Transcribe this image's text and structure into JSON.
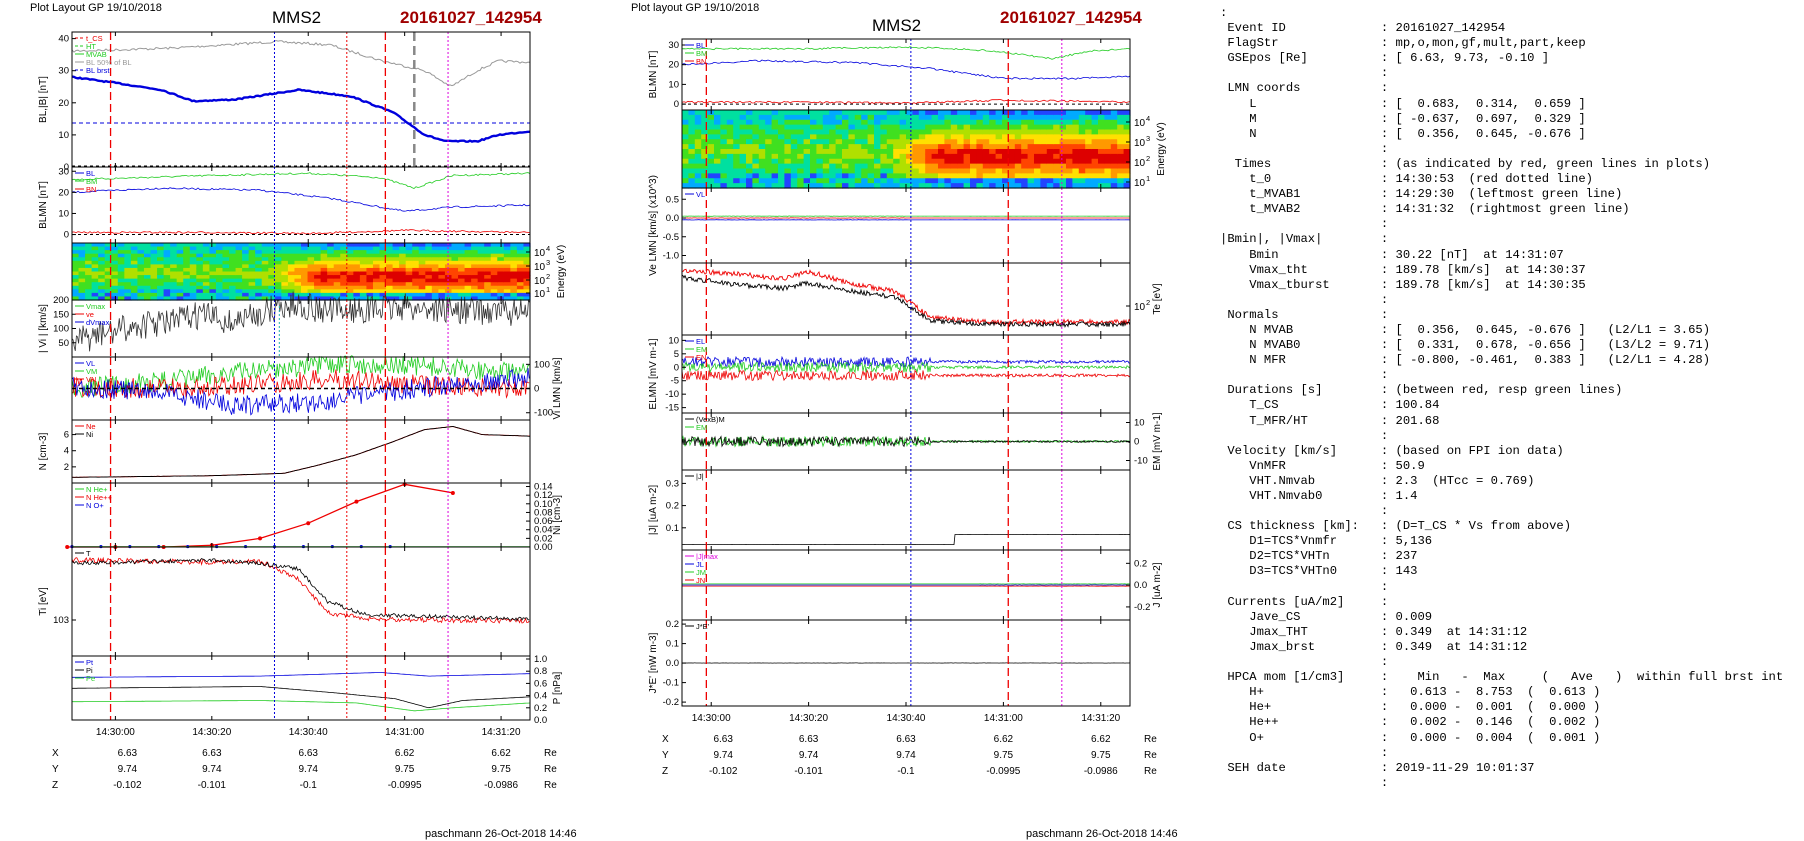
{
  "header": {
    "left_title": "Plot Layout GP 19/10/2018",
    "right_title": "Plot layout GP 19/10/2018",
    "spacecraft": "MMS2",
    "event": "20161027_142954"
  },
  "footer": {
    "left": "paschmann 26-Oct-2018 14:46",
    "right": "paschmann 26-Oct-2018 14:46"
  },
  "colors": {
    "red": "#ee0000",
    "green": "#22cc22",
    "blue": "#0000dd",
    "magenta": "#dd00dd",
    "black": "#000000",
    "grey": "#999999",
    "event": "#a00000"
  },
  "chart_data": [
    {
      "type": "line",
      "group": "left",
      "x_ticks": [
        "14:30:00",
        "14:30:20",
        "14:30:40",
        "14:31:00",
        "14:31:20"
      ],
      "position_table": {
        "rows": [
          {
            "label": "X",
            "values": [
              "6.63",
              "6.63",
              "6.63",
              "6.62",
              "6.62"
            ],
            "unit": "Re"
          },
          {
            "label": "Y",
            "values": [
              "9.74",
              "9.74",
              "9.74",
              "9.75",
              "9.75"
            ],
            "unit": "Re"
          },
          {
            "label": "Z",
            "values": [
              "-0.102",
              "-0.101",
              "-0.1",
              "-0.0995",
              "-0.0986"
            ],
            "unit": "Re"
          }
        ]
      },
      "panels": [
        {
          "id": "b",
          "ylabel": "BL,|B| [nT]",
          "y_ticks_left": [
            "0",
            "10",
            "20",
            "30",
            "40"
          ],
          "legend": [
            "t_CS",
            "HT",
            "MVAB",
            "BL 50% of BL",
            "BL brst"
          ]
        },
        {
          "id": "blmn",
          "ylabel": "BLMN [nT]",
          "y_ticks_left": [
            "0",
            "10",
            "20",
            "30"
          ],
          "legend": [
            "BL",
            "BM",
            "BN"
          ]
        },
        {
          "id": "spec",
          "ylabel_right": "Energy (eV)",
          "y_ticks_right": [
            "10^4",
            "10^3",
            "10^2",
            "10^1"
          ]
        },
        {
          "id": "vi",
          "ylabel": "| Vi | [km/s]",
          "y_ticks_left": [
            "50",
            "100",
            "150",
            "200"
          ],
          "legend": [
            "Vmax",
            "ve",
            "dVmax"
          ]
        },
        {
          "id": "vilmn",
          "ylabel_right": "Vi LMN [km/s]",
          "y_ticks_right": [
            "100",
            "0",
            "-100"
          ],
          "legend": [
            "VL",
            "VM",
            "VN"
          ]
        },
        {
          "id": "n",
          "ylabel": "N [cm-3]",
          "y_ticks_left": [
            "2",
            "4",
            "6"
          ],
          "legend": [
            "Ne",
            "Ni"
          ]
        },
        {
          "id": "nion",
          "ylabel_right": "Ni [cm-3]",
          "y_ticks_right": [
            "0.14",
            "0.12",
            "0.10",
            "0.08",
            "0.06",
            "0.04",
            "0.02",
            "0.00"
          ],
          "legend": [
            "N He+",
            "N He++",
            "N O+"
          ],
          "he_pp": [
            [
              -10,
              0.0
            ],
            [
              0,
              0.0
            ],
            [
              10,
              0.0
            ],
            [
              20,
              0.004
            ],
            [
              30,
              0.02
            ],
            [
              40,
              0.055
            ],
            [
              50,
              0.105
            ],
            [
              60,
              0.145
            ],
            [
              70,
              0.125
            ]
          ]
        },
        {
          "id": "ti",
          "ylabel": "Ti [eV]",
          "y_ticks_left": [
            "10^3"
          ],
          "legend": [
            "T"
          ]
        },
        {
          "id": "p",
          "ylabel_right": "P [nPa]",
          "y_ticks_right": [
            "1.0",
            "0.8",
            "0.6",
            "0.4",
            "0.2",
            "0.0"
          ],
          "legend": [
            "Pt",
            "Pi",
            "Pe"
          ]
        }
      ]
    },
    {
      "type": "line",
      "group": "right",
      "x_ticks": [
        "14:30:00",
        "14:30:20",
        "14:30:40",
        "14:31:00",
        "14:31:20"
      ],
      "position_table": {
        "rows": [
          {
            "label": "X",
            "values": [
              "6.63",
              "6.63",
              "6.63",
              "6.62",
              "6.62"
            ],
            "unit": "Re"
          },
          {
            "label": "Y",
            "values": [
              "9.74",
              "9.74",
              "9.74",
              "9.75",
              "9.75"
            ],
            "unit": "Re"
          },
          {
            "label": "Z",
            "values": [
              "-0.102",
              "-0.101",
              "-0.1",
              "-0.0995",
              "-0.0986"
            ],
            "unit": "Re"
          }
        ]
      },
      "panels": [
        {
          "id": "blmn",
          "ylabel": "BLMN [nT]",
          "y_ticks_left": [
            "0",
            "10",
            "20",
            "30"
          ],
          "legend": [
            "BL",
            "BM",
            "BN"
          ]
        },
        {
          "id": "spec",
          "ylabel_right": "Energy (eV)",
          "y_ticks_right": [
            "10^4",
            "10^3",
            "10^2",
            "10^1"
          ]
        },
        {
          "id": "ve",
          "ylabel": "Ve LMN [km/s] (x10^3)",
          "y_ticks_left": [
            "0.5",
            "0.0",
            "-0.5",
            "-1.0"
          ],
          "legend": [
            "VL"
          ]
        },
        {
          "id": "te",
          "ylabel_right": "Te [eV]",
          "y_ticks_right": [
            "10^2"
          ]
        },
        {
          "id": "e",
          "ylabel": "ELMN [mV m-1]",
          "y_ticks_left": [
            "10",
            "5",
            "0",
            "-5",
            "-10",
            "-15"
          ],
          "legend": [
            "EL",
            "EM",
            "EN"
          ]
        },
        {
          "id": "em",
          "ylabel_right": "EM [mV m-1]",
          "y_ticks_right": [
            "10",
            "0",
            "-10"
          ],
          "legend": [
            "(VexB)M",
            "EM"
          ]
        },
        {
          "id": "j",
          "ylabel": "|J| [uA m-2]",
          "y_ticks_left": [
            "0.3",
            "0.2",
            "0.1"
          ],
          "legend": [
            "|J|"
          ]
        },
        {
          "id": "jlmn",
          "ylabel_right": "J [uA m-2]",
          "y_ticks_right": [
            "0.2",
            "0.0",
            "-0.2"
          ],
          "legend": [
            "|J|max",
            "JL",
            "JM",
            "JN"
          ]
        },
        {
          "id": "jdote",
          "ylabel": "J*E' [nW m-3]",
          "y_ticks_left": [
            "0.2",
            "0.1",
            "0.0",
            "-0.1",
            "-0.2"
          ],
          "legend": [
            "J*E'"
          ]
        }
      ]
    }
  ],
  "summary": [
    ":",
    " Event ID             : 20161027_142954",
    " FlagStr              : mp,o,mon,gf,mult,part,keep",
    " GSEpos [Re]          : [ 6.63, 9.73, -0.10 ]",
    "                      :",
    " LMN coords           :",
    "    L                 : [  0.683,  0.314,  0.659 ]",
    "    M                 : [ -0.637,  0.697,  0.329 ]",
    "    N                 : [  0.356,  0.645, -0.676 ]",
    "                      :",
    "  Times               : (as indicated by red, green lines in plots)",
    "    t_0               : 14:30:53  (red dotted line)",
    "    t_MVAB1           : 14:29:30  (leftmost green line)",
    "    t_MVAB2           : 14:31:32  (rightmost green line)",
    "                      :",
    "|Bmin|, |Vmax|        :",
    "    Bmin              : 30.22 [nT]  at 14:31:07",
    "    Vmax_tht          : 189.78 [km/s]  at 14:30:37",
    "    Vmax_tburst       : 189.78 [km/s]  at 14:30:35",
    "                      :",
    " Normals              :",
    "    N MVAB            : [  0.356,  0.645, -0.676 ]   (L2/L1 = 3.65)",
    "    N MVAB0           : [  0.331,  0.678, -0.656 ]   (L3/L2 = 9.71)",
    "    N MFR             : [ -0.800, -0.461,  0.383 ]   (L2/L1 = 4.28)",
    "                      :",
    " Durations [s]        : (between red, resp green lines)",
    "    T_CS              : 100.84",
    "    T_MFR/HT          : 201.68",
    "                      :",
    " Velocity [km/s]      : (based on FPI ion data)",
    "    VnMFR             : 50.9",
    "    VHT.Nmvab         : 2.3  (HTcc = 0.769)",
    "    VHT.Nmvab0        : 1.4",
    "                      :",
    " CS thickness [km]:   : (D=T_CS * Vs from above)",
    "    D1=TCS*Vnmfr      : 5,136",
    "    D2=TCS*VHTn       : 237",
    "    D3=TCS*VHTn0      : 143",
    "                      :",
    " Currents [uA/m2]     :",
    "    Jave_CS           : 0.009",
    "    Jmax_THT          : 0.349  at 14:31:12",
    "    Jmax_brst         : 0.349  at 14:31:12",
    "                      :",
    " HPCA mom [1/cm3]     :    Min   -  Max     (   Ave   )  within full brst int",
    "    H+                :   0.613 -  8.753  (  0.613 )",
    "    He+               :   0.000 -  0.001  (  0.000 )",
    "    He++              :   0.002 -  0.146  (  0.002 )",
    "    O+                :   0.000 -  0.004  (  0.001 )",
    "                      :",
    " SEH date             : 2019-11-29 10:01:37",
    "                      :"
  ]
}
